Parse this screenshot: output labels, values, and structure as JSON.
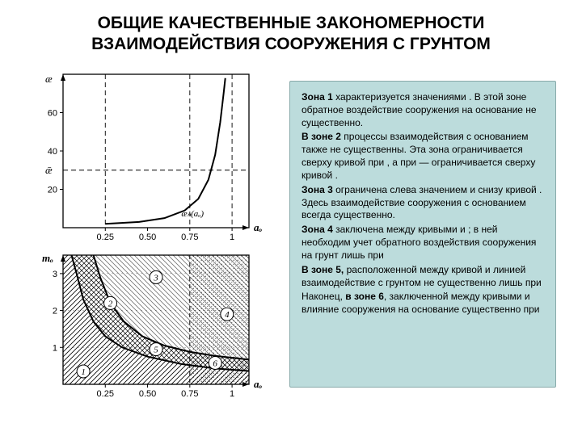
{
  "title": "ОБЩИЕ  КАЧЕСТВЕННЫЕ ЗАКОНОМЕРНОСТИ\nВЗАИМОДЕЙСТВИЯ СООРУЖЕНИЯ С ГРУНТОМ",
  "textbox": {
    "p1a": "Зона 1",
    "p1b": " характеризуется значениями . В этой зоне обратное воздействие сооружения на основание не существенно.",
    "p2a": "В зоне 2",
    "p2b": " процессы взаимодействия с основанием также не существенны. Эта зона ограничивается сверху кривой  при , а при  — ограничивается сверху кривой .",
    "p3a": "Зона 3",
    "p3b": " ограничена слева значением и снизу кривой . Здесь взаимодействие сооружения с основанием всегда существенно.",
    "p4a": "Зона 4",
    "p4b": " заключена между кривыми и ; в ней необходим учет обратного воздействия сооружения на грунт лишь при",
    "p5a": "В зоне 5,",
    "p5b": " расположенной между кривой и линией  взаимодействие с грунтом не существенно   лишь   при",
    "p6a": "Наконец, ",
    "p6b": "в зоне 6",
    "p6c": ", заключенной между кривыми  и влияние сооружения на основание существенно при"
  },
  "charts": {
    "top": {
      "ylabel": "æ",
      "xlabel": "aₒ",
      "y_ticks": [
        "20",
        "40",
        "60"
      ],
      "y_tick_vals": [
        20,
        40,
        60
      ],
      "y_mid_label": "ǣ",
      "x_ticks": [
        "0.25",
        "0.50",
        "0.75",
        "1"
      ],
      "x_tick_vals": [
        0.25,
        0.5,
        0.75,
        1.0
      ],
      "vlines": [
        0.25,
        0.75,
        1.0
      ],
      "curve_label": "æₙ(aₒ)",
      "curve": [
        {
          "x": 0.25,
          "y": 2
        },
        {
          "x": 0.45,
          "y": 3
        },
        {
          "x": 0.6,
          "y": 5
        },
        {
          "x": 0.72,
          "y": 9
        },
        {
          "x": 0.8,
          "y": 15
        },
        {
          "x": 0.86,
          "y": 25
        },
        {
          "x": 0.9,
          "y": 38
        },
        {
          "x": 0.93,
          "y": 55
        },
        {
          "x": 0.95,
          "y": 70
        },
        {
          "x": 0.96,
          "y": 78
        }
      ],
      "ylim": [
        0,
        80
      ],
      "xlim": [
        0,
        1.1
      ]
    },
    "bottom": {
      "ylabel": "mₒ",
      "xlabel": "aₒ",
      "y_ticks": [
        "1",
        "2",
        "3"
      ],
      "y_tick_vals": [
        1,
        2,
        3
      ],
      "x_ticks": [
        "0.25",
        "0.50",
        "0.75",
        "1"
      ],
      "x_tick_vals": [
        0.25,
        0.5,
        0.75,
        1.0
      ],
      "ylim": [
        0,
        3.5
      ],
      "xlim": [
        0,
        1.1
      ],
      "zone_labels": [
        "1",
        "2",
        "3",
        "4",
        "5",
        "6"
      ],
      "curve_a": [
        {
          "x": 0.05,
          "y": 3.5
        },
        {
          "x": 0.08,
          "y": 3.0
        },
        {
          "x": 0.12,
          "y": 2.3
        },
        {
          "x": 0.18,
          "y": 1.7
        },
        {
          "x": 0.25,
          "y": 1.3
        },
        {
          "x": 0.35,
          "y": 1.0
        },
        {
          "x": 0.5,
          "y": 0.75
        },
        {
          "x": 0.7,
          "y": 0.55
        },
        {
          "x": 0.9,
          "y": 0.43
        },
        {
          "x": 1.1,
          "y": 0.36
        }
      ],
      "curve_b": [
        {
          "x": 0.18,
          "y": 3.5
        },
        {
          "x": 0.22,
          "y": 2.9
        },
        {
          "x": 0.28,
          "y": 2.2
        },
        {
          "x": 0.36,
          "y": 1.7
        },
        {
          "x": 0.47,
          "y": 1.3
        },
        {
          "x": 0.6,
          "y": 1.05
        },
        {
          "x": 0.75,
          "y": 0.88
        },
        {
          "x": 0.9,
          "y": 0.77
        },
        {
          "x": 1.1,
          "y": 0.67
        }
      ]
    },
    "colors": {
      "frame": "#000000",
      "grid": "#000000",
      "dash": "#000000",
      "bg": "#ffffff",
      "dotfill": "#808080"
    }
  }
}
